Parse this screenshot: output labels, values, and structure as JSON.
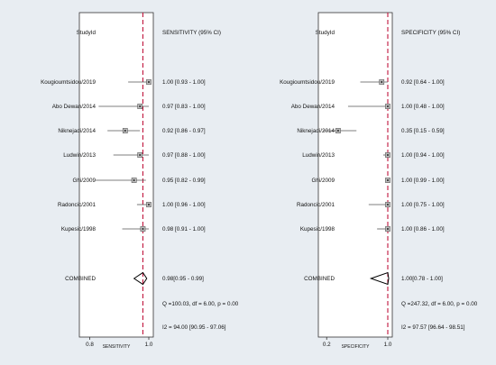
{
  "chart_data": [
    {
      "type": "forest",
      "id_header": "StudyId",
      "stat_header": "SENSITIVITY (95% CI)",
      "xlabel": "SENSITIVITY",
      "xlim": [
        0.78,
        1.0
      ],
      "ticks": [
        {
          "v": 0.8,
          "label": "0.8"
        },
        {
          "v": 1.0,
          "label": "1.0"
        }
      ],
      "pooled": 0.98,
      "studies": [
        {
          "name": "Kougioumtsidou/2019",
          "est": 1.0,
          "lo": 0.93,
          "hi": 1.0,
          "label": "1.00 [0.93 - 1.00]"
        },
        {
          "name": "Abo Dewan/2014",
          "est": 0.97,
          "lo": 0.83,
          "hi": 1.0,
          "label": "0.97 [0.83 - 1.00]"
        },
        {
          "name": "Niknejadi/2014",
          "est": 0.92,
          "lo": 0.86,
          "hi": 0.97,
          "label": "0.92 [0.86 - 0.97]"
        },
        {
          "name": "Ludwin/2013",
          "est": 0.97,
          "lo": 0.88,
          "hi": 1.0,
          "label": "0.97 [0.88 - 1.00]"
        },
        {
          "name": "Ghi/2009",
          "est": 0.95,
          "lo": 0.82,
          "hi": 0.99,
          "label": "0.95 [0.82 - 0.99]"
        },
        {
          "name": "Radoncic/2001",
          "est": 1.0,
          "lo": 0.96,
          "hi": 1.0,
          "label": "1.00 [0.96 - 1.00]"
        },
        {
          "name": "Kupesic/1998",
          "est": 0.98,
          "lo": 0.91,
          "hi": 1.0,
          "label": "0.98 [0.91 - 1.00]"
        }
      ],
      "combined": {
        "name": "COMBINED",
        "est": 0.98,
        "lo": 0.95,
        "hi": 0.99,
        "label": "0.98[0.95 - 0.99]"
      },
      "q_text": "Q =100.03, df = 6.00, p =  0.00",
      "i2_text": "I2 = 94.00 [90.95 - 97.06]"
    },
    {
      "type": "forest",
      "id_header": "StudyId",
      "stat_header": "SPECIFICITY (95% CI)",
      "xlabel": "SPECIFICITY",
      "xlim": [
        0.15,
        1.0
      ],
      "ticks": [
        {
          "v": 0.2,
          "label": "0.2"
        },
        {
          "v": 1.0,
          "label": "1.0"
        }
      ],
      "pooled": 1.0,
      "studies": [
        {
          "name": "Kougioumtsidou/2019",
          "est": 0.92,
          "lo": 0.64,
          "hi": 1.0,
          "label": "0.92 [0.64 - 1.00]"
        },
        {
          "name": "Abo Dewan/2014",
          "est": 1.0,
          "lo": 0.48,
          "hi": 1.0,
          "label": "1.00 [0.48 - 1.00]"
        },
        {
          "name": "Niknejadi/2014",
          "est": 0.35,
          "lo": 0.15,
          "hi": 0.59,
          "label": "0.35 [0.15 - 0.59]"
        },
        {
          "name": "Ludwin/2013",
          "est": 1.0,
          "lo": 0.94,
          "hi": 1.0,
          "label": "1.00 [0.94 - 1.00]"
        },
        {
          "name": "Ghi/2009",
          "est": 1.0,
          "lo": 0.99,
          "hi": 1.0,
          "label": "1.00 [0.99 - 1.00]"
        },
        {
          "name": "Radoncic/2001",
          "est": 1.0,
          "lo": 0.75,
          "hi": 1.0,
          "label": "1.00 [0.75 - 1.00]"
        },
        {
          "name": "Kupesic/1998",
          "est": 1.0,
          "lo": 0.86,
          "hi": 1.0,
          "label": "1.00 [0.86 - 1.00]"
        }
      ],
      "combined": {
        "name": "COMBINED",
        "est": 1.0,
        "lo": 0.78,
        "hi": 1.0,
        "label": "1.00[0.78 - 1.00]"
      },
      "q_text": "Q =247.32, df = 6.00, p =  0.00",
      "i2_text": "I2 = 97.57 [96.64 - 98.51]"
    }
  ],
  "colors": {
    "pooled_line": "#c0143c",
    "ci": "#555555",
    "frame": "#333333",
    "panel": "#ffffff",
    "background": "#e8edf2"
  }
}
